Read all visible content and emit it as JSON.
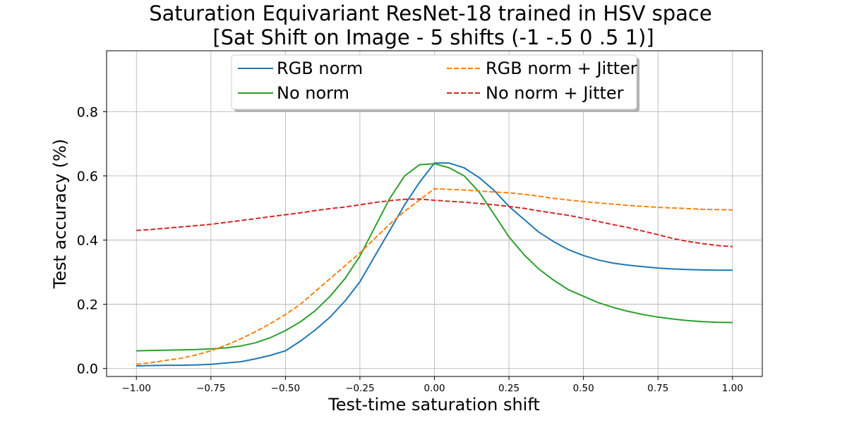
{
  "chart_data": {
    "type": "line",
    "title_lines": [
      "Saturation Equivariant ResNet-18 trained in HSV space",
      "[Sat Shift on Image - 5 shifts (-1 -.5 0 .5 1)]"
    ],
    "xlabel": "Test-time saturation shift",
    "ylabel": "Test accuracy (%)",
    "xlim": [
      -1.1,
      1.1
    ],
    "ylim": [
      -0.025,
      0.99
    ],
    "xticks": [
      -1.0,
      -0.75,
      -0.5,
      -0.25,
      0.0,
      0.25,
      0.5,
      0.75,
      1.0
    ],
    "xtick_labels": [
      "−1.00",
      "−0.75",
      "−0.50",
      "−0.25",
      "0.00",
      "0.25",
      "0.50",
      "0.75",
      "1.00"
    ],
    "yticks": [
      0.0,
      0.2,
      0.4,
      0.6,
      0.8
    ],
    "ytick_labels": [
      "0.0",
      "0.2",
      "0.4",
      "0.6",
      "0.8"
    ],
    "grid": true,
    "legend_position": "top-center",
    "x": [
      -1.0,
      -0.95,
      -0.9,
      -0.85,
      -0.8,
      -0.75,
      -0.7,
      -0.65,
      -0.6,
      -0.55,
      -0.5,
      -0.45,
      -0.4,
      -0.35,
      -0.3,
      -0.25,
      -0.2,
      -0.15,
      -0.1,
      -0.05,
      0.0,
      0.05,
      0.1,
      0.15,
      0.2,
      0.25,
      0.3,
      0.35,
      0.4,
      0.45,
      0.5,
      0.55,
      0.6,
      0.65,
      0.7,
      0.75,
      0.8,
      0.85,
      0.9,
      0.95,
      1.0
    ],
    "series": [
      {
        "name": "RGB norm",
        "color": "#1f77b4",
        "dash": "solid",
        "values": [
          0.008,
          0.009,
          0.01,
          0.01,
          0.011,
          0.013,
          0.017,
          0.021,
          0.03,
          0.041,
          0.055,
          0.085,
          0.12,
          0.16,
          0.21,
          0.27,
          0.35,
          0.43,
          0.51,
          0.58,
          0.64,
          0.64,
          0.625,
          0.595,
          0.555,
          0.505,
          0.465,
          0.425,
          0.395,
          0.37,
          0.352,
          0.338,
          0.328,
          0.322,
          0.317,
          0.313,
          0.31,
          0.308,
          0.307,
          0.306,
          0.306
        ]
      },
      {
        "name": "No norm",
        "color": "#2ca02c",
        "dash": "solid",
        "values": [
          0.055,
          0.056,
          0.057,
          0.058,
          0.059,
          0.061,
          0.064,
          0.07,
          0.08,
          0.096,
          0.118,
          0.145,
          0.18,
          0.225,
          0.28,
          0.35,
          0.44,
          0.53,
          0.6,
          0.635,
          0.638,
          0.625,
          0.6,
          0.55,
          0.48,
          0.41,
          0.355,
          0.31,
          0.275,
          0.245,
          0.225,
          0.205,
          0.19,
          0.178,
          0.168,
          0.16,
          0.154,
          0.149,
          0.146,
          0.144,
          0.143
        ]
      },
      {
        "name": "RGB norm + Jitter",
        "color": "#ff7f0e",
        "dash": "dashed",
        "values": [
          0.013,
          0.018,
          0.025,
          0.032,
          0.042,
          0.055,
          0.072,
          0.092,
          0.115,
          0.14,
          0.168,
          0.2,
          0.24,
          0.28,
          0.32,
          0.36,
          0.405,
          0.45,
          0.49,
          0.525,
          0.56,
          0.558,
          0.556,
          0.553,
          0.55,
          0.547,
          0.543,
          0.537,
          0.53,
          0.525,
          0.52,
          0.516,
          0.512,
          0.508,
          0.505,
          0.502,
          0.5,
          0.498,
          0.496,
          0.495,
          0.494
        ]
      },
      {
        "name": "No norm + Jitter",
        "color": "#d62728",
        "dash": "dashed",
        "values": [
          0.43,
          0.433,
          0.437,
          0.441,
          0.445,
          0.449,
          0.455,
          0.461,
          0.467,
          0.473,
          0.479,
          0.485,
          0.492,
          0.498,
          0.503,
          0.51,
          0.517,
          0.523,
          0.527,
          0.528,
          0.524,
          0.521,
          0.518,
          0.514,
          0.51,
          0.505,
          0.499,
          0.491,
          0.484,
          0.477,
          0.468,
          0.458,
          0.448,
          0.439,
          0.428,
          0.417,
          0.405,
          0.396,
          0.389,
          0.383,
          0.38
        ]
      }
    ]
  }
}
